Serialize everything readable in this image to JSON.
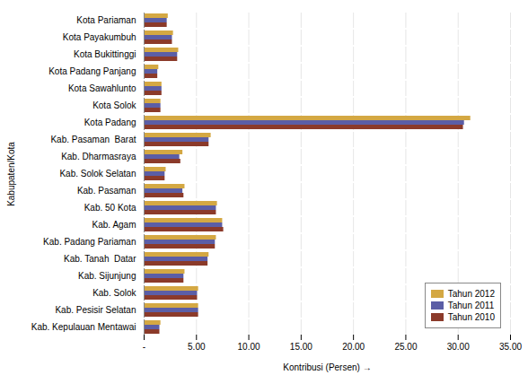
{
  "chart_data": {
    "type": "bar",
    "orientation": "horizontal",
    "categories": [
      "Kab. Kepulauan Mentawai",
      "Kab. Pesisir Selatan",
      "Kab. Solok",
      "Kab. Sijunjung",
      "Kab. Tanah  Datar",
      "Kab. Padang Pariaman",
      "Kab. Agam",
      "Kab. 50 Kota",
      "Kab. Pasaman",
      "Kab. Solok Selatan",
      "Kab. Dharmasraya",
      "Kab. Pasaman  Barat",
      "Kota Padang",
      "Kota Solok",
      "Kota Sawahlunto",
      "Kota Padang Panjang",
      "Kota Bukittinggi",
      "Kota Payakumbuh",
      "Kota Pariaman"
    ],
    "series": [
      {
        "name": "Tahun 2012",
        "color": "#D4A843",
        "values": [
          1.6,
          5.2,
          5.2,
          3.9,
          6.2,
          6.9,
          7.5,
          7.0,
          3.9,
          2.1,
          3.7,
          6.4,
          31.2,
          1.6,
          1.7,
          1.4,
          3.3,
          2.8,
          2.3
        ]
      },
      {
        "name": "Tahun 2011",
        "color": "#5B5EA6",
        "values": [
          1.5,
          5.2,
          5.1,
          3.8,
          6.1,
          6.8,
          7.5,
          6.9,
          3.7,
          2.0,
          3.4,
          6.2,
          30.6,
          1.6,
          1.7,
          1.3,
          3.2,
          2.7,
          2.2
        ]
      },
      {
        "name": "Tahun 2010",
        "color": "#8B3A2A",
        "values": [
          1.5,
          5.2,
          5.1,
          3.8,
          6.1,
          6.8,
          7.6,
          6.9,
          3.8,
          2.0,
          3.5,
          6.2,
          30.5,
          1.6,
          1.7,
          1.3,
          3.2,
          2.7,
          2.2
        ]
      }
    ],
    "xlabel": "Kontribusi (Persen)",
    "ylabel": "Kabupaten/Kota",
    "xlim": [
      0,
      35.0
    ],
    "xticks": [
      {
        "value": 0,
        "label": "-"
      },
      {
        "value": 5.0,
        "label": "5.00"
      },
      {
        "value": 10.0,
        "label": "10.00"
      },
      {
        "value": 15.0,
        "label": "15.00"
      },
      {
        "value": 20.0,
        "label": "20.00"
      },
      {
        "value": 25.0,
        "label": "25.00"
      },
      {
        "value": 30.0,
        "label": "30.00"
      },
      {
        "value": 35.0,
        "label": "35.00"
      }
    ],
    "grid": true,
    "legend": "lower right"
  }
}
